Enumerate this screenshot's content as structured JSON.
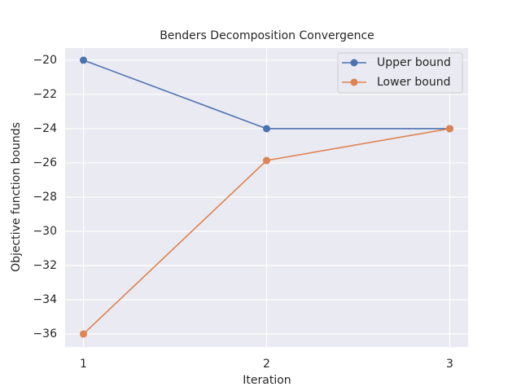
{
  "chart_data": {
    "type": "line",
    "title": "Benders Decomposition Convergence",
    "x_label": "Iteration",
    "y_label": "Objective function bounds",
    "x": [
      1,
      2,
      3
    ],
    "series": [
      {
        "name": "Upper bound",
        "color": "#4c72b0",
        "values": [
          -20,
          -24,
          -24
        ]
      },
      {
        "name": "Lower bound",
        "color": "#dd8452",
        "values": [
          -36,
          -25.86,
          -24
        ]
      }
    ],
    "xlim": [
      0.9,
      3.1
    ],
    "ylim": [
      -36.76,
      -19.29
    ],
    "xticks": [
      1,
      2,
      3
    ],
    "yticks": [
      {
        "value": -20,
        "label": "−20"
      },
      {
        "value": -22,
        "label": "−22"
      },
      {
        "value": -24,
        "label": "−24"
      },
      {
        "value": -26,
        "label": "−26"
      },
      {
        "value": -28,
        "label": "−28"
      },
      {
        "value": -30,
        "label": "−30"
      },
      {
        "value": -32,
        "label": "−32"
      },
      {
        "value": -34,
        "label": "−34"
      },
      {
        "value": -36,
        "label": "−36"
      }
    ],
    "grid": true,
    "legend": "upper right",
    "background": "#eaeaf2"
  }
}
